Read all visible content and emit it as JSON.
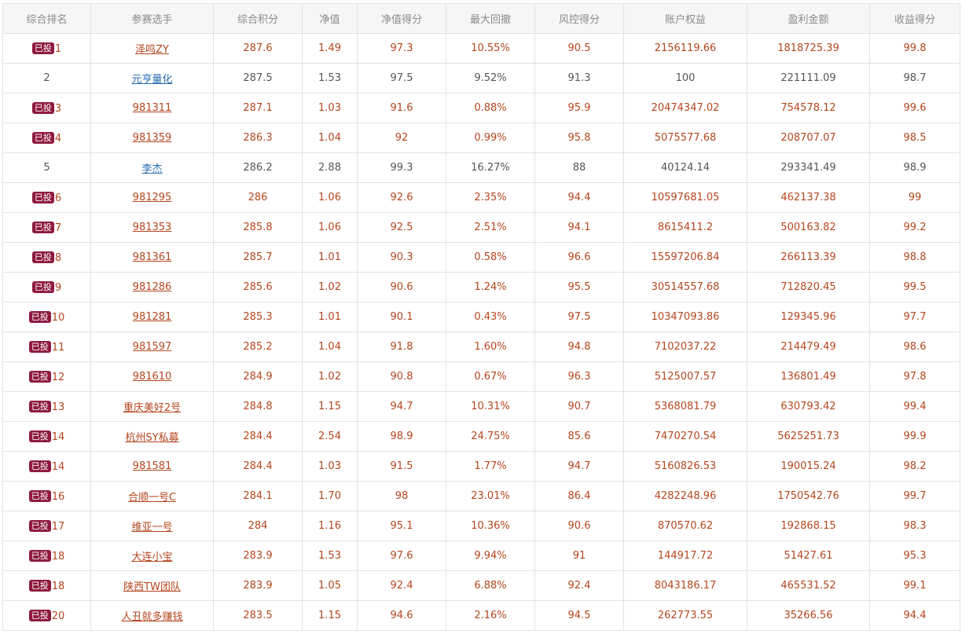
{
  "columns": [
    "综合排名",
    "参赛选手",
    "综合积分",
    "净值",
    "净值得分",
    "最大回撤",
    "风控得分",
    "账户权益",
    "盈利金额",
    "收益得分"
  ],
  "badge_label": "已投",
  "rows": [
    {
      "invested": true,
      "rank": "1",
      "name": "泽鸣ZY",
      "score": "287.6",
      "nav": "1.49",
      "nav_score": "97.3",
      "max_dd": "10.55%",
      "risk_score": "90.5",
      "equity": "2156119.66",
      "profit": "1818725.39",
      "return_score": "99.8"
    },
    {
      "invested": false,
      "rank": "2",
      "name": "元亨量化",
      "score": "287.5",
      "nav": "1.53",
      "nav_score": "97.5",
      "max_dd": "9.52%",
      "risk_score": "91.3",
      "equity": "100",
      "profit": "221111.09",
      "return_score": "98.7"
    },
    {
      "invested": true,
      "rank": "3",
      "name": "981311",
      "score": "287.1",
      "nav": "1.03",
      "nav_score": "91.6",
      "max_dd": "0.88%",
      "risk_score": "95.9",
      "equity": "20474347.02",
      "profit": "754578.12",
      "return_score": "99.6"
    },
    {
      "invested": true,
      "rank": "4",
      "name": "981359",
      "score": "286.3",
      "nav": "1.04",
      "nav_score": "92",
      "max_dd": "0.99%",
      "risk_score": "95.8",
      "equity": "5075577.68",
      "profit": "208707.07",
      "return_score": "98.5"
    },
    {
      "invested": false,
      "rank": "5",
      "name": "李杰",
      "score": "286.2",
      "nav": "2.88",
      "nav_score": "99.3",
      "max_dd": "16.27%",
      "risk_score": "88",
      "equity": "40124.14",
      "profit": "293341.49",
      "return_score": "98.9"
    },
    {
      "invested": true,
      "rank": "6",
      "name": "981295",
      "score": "286",
      "nav": "1.06",
      "nav_score": "92.6",
      "max_dd": "2.35%",
      "risk_score": "94.4",
      "equity": "10597681.05",
      "profit": "462137.38",
      "return_score": "99"
    },
    {
      "invested": true,
      "rank": "7",
      "name": "981353",
      "score": "285.8",
      "nav": "1.06",
      "nav_score": "92.5",
      "max_dd": "2.51%",
      "risk_score": "94.1",
      "equity": "8615411.2",
      "profit": "500163.82",
      "return_score": "99.2"
    },
    {
      "invested": true,
      "rank": "8",
      "name": "981361",
      "score": "285.7",
      "nav": "1.01",
      "nav_score": "90.3",
      "max_dd": "0.58%",
      "risk_score": "96.6",
      "equity": "15597206.84",
      "profit": "266113.39",
      "return_score": "98.8"
    },
    {
      "invested": true,
      "rank": "9",
      "name": "981286",
      "score": "285.6",
      "nav": "1.02",
      "nav_score": "90.6",
      "max_dd": "1.24%",
      "risk_score": "95.5",
      "equity": "30514557.68",
      "profit": "712820.45",
      "return_score": "99.5"
    },
    {
      "invested": true,
      "rank": "10",
      "name": "981281",
      "score": "285.3",
      "nav": "1.01",
      "nav_score": "90.1",
      "max_dd": "0.43%",
      "risk_score": "97.5",
      "equity": "10347093.86",
      "profit": "129345.96",
      "return_score": "97.7"
    },
    {
      "invested": true,
      "rank": "11",
      "name": "981597",
      "score": "285.2",
      "nav": "1.04",
      "nav_score": "91.8",
      "max_dd": "1.60%",
      "risk_score": "94.8",
      "equity": "7102037.22",
      "profit": "214479.49",
      "return_score": "98.6"
    },
    {
      "invested": true,
      "rank": "12",
      "name": "981610",
      "score": "284.9",
      "nav": "1.02",
      "nav_score": "90.8",
      "max_dd": "0.67%",
      "risk_score": "96.3",
      "equity": "5125007.57",
      "profit": "136801.49",
      "return_score": "97.8"
    },
    {
      "invested": true,
      "rank": "13",
      "name": "重庆美好2号",
      "score": "284.8",
      "nav": "1.15",
      "nav_score": "94.7",
      "max_dd": "10.31%",
      "risk_score": "90.7",
      "equity": "5368081.79",
      "profit": "630793.42",
      "return_score": "99.4"
    },
    {
      "invested": true,
      "rank": "14",
      "name": "杭州SY私募",
      "score": "284.4",
      "nav": "2.54",
      "nav_score": "98.9",
      "max_dd": "24.75%",
      "risk_score": "85.6",
      "equity": "7470270.54",
      "profit": "5625251.73",
      "return_score": "99.9"
    },
    {
      "invested": true,
      "rank": "14",
      "name": "981581",
      "score": "284.4",
      "nav": "1.03",
      "nav_score": "91.5",
      "max_dd": "1.77%",
      "risk_score": "94.7",
      "equity": "5160826.53",
      "profit": "190015.24",
      "return_score": "98.2"
    },
    {
      "invested": true,
      "rank": "16",
      "name": "合顺一号C",
      "score": "284.1",
      "nav": "1.70",
      "nav_score": "98",
      "max_dd": "23.01%",
      "risk_score": "86.4",
      "equity": "4282248.96",
      "profit": "1750542.76",
      "return_score": "99.7"
    },
    {
      "invested": true,
      "rank": "17",
      "name": "维亚一号",
      "score": "284",
      "nav": "1.16",
      "nav_score": "95.1",
      "max_dd": "10.36%",
      "risk_score": "90.6",
      "equity": "870570.62",
      "profit": "192868.15",
      "return_score": "98.3"
    },
    {
      "invested": true,
      "rank": "18",
      "name": "大连小宝",
      "score": "283.9",
      "nav": "1.53",
      "nav_score": "97.6",
      "max_dd": "9.94%",
      "risk_score": "91",
      "equity": "144917.72",
      "profit": "51427.61",
      "return_score": "95.3"
    },
    {
      "invested": true,
      "rank": "18",
      "name": "陕西TW团队",
      "score": "283.9",
      "nav": "1.05",
      "nav_score": "92.4",
      "max_dd": "6.88%",
      "risk_score": "92.4",
      "equity": "8043186.17",
      "profit": "465531.52",
      "return_score": "99.1"
    },
    {
      "invested": true,
      "rank": "20",
      "name": "人丑就多赚钱",
      "score": "283.5",
      "nav": "1.15",
      "nav_score": "94.6",
      "max_dd": "2.16%",
      "risk_score": "94.5",
      "equity": "262773.55",
      "profit": "35266.56",
      "return_score": "94.4"
    }
  ]
}
